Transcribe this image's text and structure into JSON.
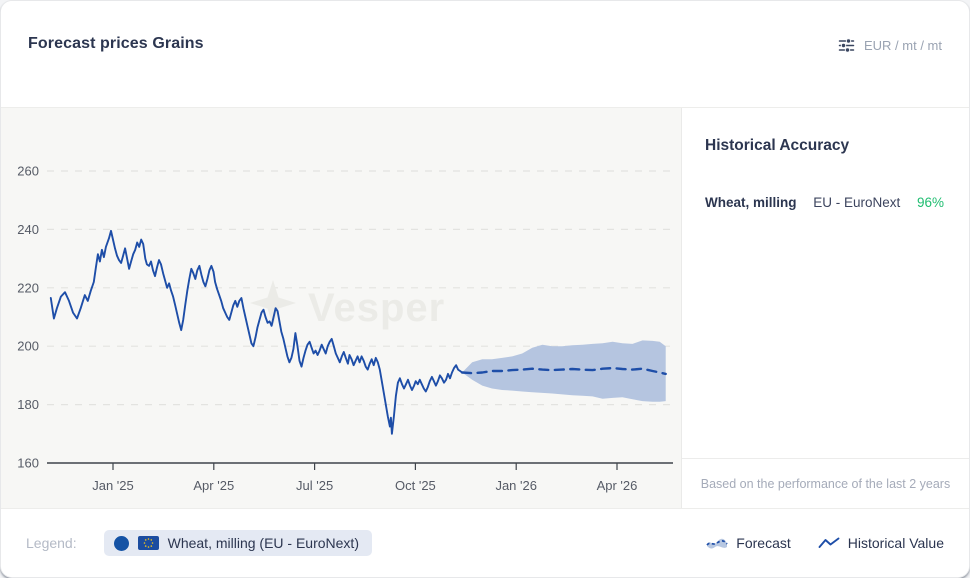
{
  "header": {
    "title": "Forecast prices Grains",
    "unit_label": "EUR / mt / mt"
  },
  "watermark": {
    "text": "Vesper"
  },
  "accuracy_panel": {
    "title": "Historical Accuracy",
    "rows": [
      {
        "product": "Wheat, milling",
        "market": "EU - EuroNext",
        "accuracy": "96%"
      }
    ],
    "footnote": "Based on the performance of the last 2 years",
    "accuracy_color": "#1fbd70"
  },
  "legend": {
    "label": "Legend:",
    "series_pill": {
      "text": "Wheat, milling (EU - EuroNext)",
      "dot_color": "#1553a5"
    },
    "toggles": [
      {
        "label": "Forecast"
      },
      {
        "label": "Historical Value"
      }
    ]
  },
  "colors": {
    "line_blue": "#1e4ea8",
    "forecast_band": "#b5c5e0",
    "chart_bg": "#f7f7f5",
    "grid": "#e3e3e0",
    "axis": "#3f444b",
    "tick_text": "#565b66"
  },
  "chart_data": {
    "type": "line",
    "title": "Forecast prices Grains",
    "ylabel": "EUR / mt",
    "x_unit": "months from Jan 2025",
    "y_ticks": [
      260,
      240,
      220,
      200,
      180,
      160
    ],
    "y_range": [
      160,
      270
    ],
    "x_ticks": [
      {
        "m": 0,
        "label": "Jan '25"
      },
      {
        "m": 3,
        "label": "Apr '25"
      },
      {
        "m": 6,
        "label": "Jul '25"
      },
      {
        "m": 9,
        "label": "Oct '25"
      },
      {
        "m": 12,
        "label": "Jan '26"
      },
      {
        "m": 15,
        "label": "Apr '26"
      }
    ],
    "series": [
      {
        "name": "Wheat, milling (EU - EuroNext) — Historical Value",
        "style": "solid",
        "x": [
          -1.85,
          -1.76,
          -1.67,
          -1.55,
          -1.43,
          -1.31,
          -1.19,
          -1.07,
          -0.96,
          -0.84,
          -0.75,
          -0.66,
          -0.57,
          -0.51,
          -0.45,
          -0.39,
          -0.33,
          -0.27,
          -0.21,
          -0.12,
          -0.06,
          0,
          0.06,
          0.12,
          0.18,
          0.24,
          0.3,
          0.36,
          0.42,
          0.48,
          0.54,
          0.6,
          0.66,
          0.72,
          0.78,
          0.84,
          0.9,
          0.96,
          1.01,
          1.07,
          1.13,
          1.19,
          1.25,
          1.31,
          1.37,
          1.43,
          1.49,
          1.55,
          1.61,
          1.67,
          1.73,
          1.79,
          1.85,
          1.91,
          1.97,
          2.03,
          2.09,
          2.15,
          2.21,
          2.27,
          2.33,
          2.39,
          2.45,
          2.51,
          2.57,
          2.63,
          2.69,
          2.75,
          2.81,
          2.87,
          2.93,
          2.99,
          3.04,
          3.1,
          3.16,
          3.22,
          3.28,
          3.34,
          3.4,
          3.46,
          3.52,
          3.58,
          3.64,
          3.7,
          3.76,
          3.82,
          3.88,
          3.94,
          4,
          4.06,
          4.12,
          4.18,
          4.24,
          4.3,
          4.36,
          4.42,
          4.48,
          4.54,
          4.6,
          4.66,
          4.72,
          4.78,
          4.84,
          4.9,
          4.96,
          5.01,
          5.07,
          5.13,
          5.19,
          5.25,
          5.31,
          5.37,
          5.43,
          5.49,
          5.55,
          5.61,
          5.67,
          5.73,
          5.79,
          5.85,
          5.91,
          5.97,
          6.03,
          6.09,
          6.15,
          6.21,
          6.27,
          6.33,
          6.39,
          6.45,
          6.51,
          6.57,
          6.63,
          6.69,
          6.75,
          6.81,
          6.87,
          6.93,
          6.99,
          7.04,
          7.1,
          7.16,
          7.22,
          7.28,
          7.34,
          7.4,
          7.46,
          7.52,
          7.58,
          7.64,
          7.7,
          7.76,
          7.82,
          7.88,
          7.94,
          8,
          8.06,
          8.12,
          8.18,
          8.24,
          8.27,
          8.3,
          8.36,
          8.42,
          8.48,
          8.54,
          8.6,
          8.66,
          8.72,
          8.78,
          8.84,
          8.9,
          8.96,
          9.01,
          9.07,
          9.13,
          9.19,
          9.25,
          9.31,
          9.37,
          9.43,
          9.49,
          9.55,
          9.61,
          9.67,
          9.73,
          9.79,
          9.85,
          9.91,
          9.97,
          10.03,
          10.09,
          10.15,
          10.21,
          10.27,
          10.33,
          10.39
        ],
        "values": [
          216.5,
          209.5,
          213,
          217,
          218.5,
          215.5,
          211.5,
          209.5,
          213,
          217.5,
          215.5,
          219,
          222,
          227,
          231.5,
          229,
          233,
          230.5,
          234,
          237,
          239.5,
          236.5,
          233.5,
          231,
          229.5,
          228.5,
          231,
          233.5,
          230,
          226.5,
          229,
          231.5,
          233,
          235.5,
          234,
          236.5,
          235,
          230,
          228,
          227.5,
          229,
          226,
          224,
          227,
          229.5,
          228,
          225,
          222.5,
          220,
          221.5,
          219,
          217,
          214,
          211,
          208,
          205.5,
          209,
          214,
          219,
          223,
          226.5,
          225,
          223,
          226,
          227.5,
          224.5,
          222,
          220.5,
          223,
          226,
          227.5,
          225.5,
          222,
          219.5,
          217.5,
          215.5,
          213,
          211.5,
          210,
          209,
          211.5,
          214,
          215.5,
          213.5,
          215.5,
          216.5,
          213,
          210,
          207,
          204,
          201,
          200,
          203,
          206.5,
          209,
          211.5,
          212.5,
          210,
          208,
          208.5,
          207,
          210,
          213,
          212,
          208,
          205,
          202.5,
          199.5,
          196.5,
          194.5,
          196,
          199,
          204.5,
          200,
          195,
          193,
          196,
          198.5,
          200.5,
          201.5,
          199.5,
          197.5,
          198.5,
          197,
          198.5,
          200.5,
          199,
          197.5,
          200,
          201.5,
          202.5,
          200,
          197.5,
          196,
          194.5,
          196.5,
          198,
          196,
          194,
          197,
          195.5,
          193.5,
          195,
          196.5,
          194.5,
          196.5,
          195,
          193,
          192,
          194,
          195.5,
          193.5,
          196,
          194.5,
          192,
          188,
          184,
          180,
          176,
          172.5,
          175.5,
          170,
          176,
          183,
          187.5,
          189,
          187,
          185.5,
          187,
          188.5,
          186.5,
          185,
          186.5,
          188,
          187,
          188.5,
          187,
          185.5,
          184.5,
          186,
          188,
          189.5,
          188,
          186.5,
          188,
          190,
          189,
          187.5,
          188.5,
          190.5,
          189,
          191,
          192.5,
          193.5,
          192,
          191.5,
          191
        ]
      },
      {
        "name": "Wheat, milling (EU - EuroNext) — Forecast (median)",
        "style": "dashed",
        "x": [
          10.39,
          10.69,
          10.99,
          11.28,
          11.58,
          11.88,
          12.18,
          12.48,
          12.78,
          13.07,
          13.37,
          13.67,
          13.97,
          14.27,
          14.57,
          14.87,
          15.16,
          15.46,
          15.76,
          16.06,
          16.27,
          16.45
        ],
        "values": [
          191,
          190.8,
          191,
          191.5,
          191.5,
          191.8,
          192,
          192.3,
          192,
          191.8,
          192,
          192.2,
          192,
          191.8,
          192.3,
          192.5,
          192.2,
          192,
          192.3,
          191.5,
          191,
          190.5
        ]
      }
    ],
    "forecast_band": {
      "x": [
        10.39,
        10.69,
        10.99,
        11.28,
        11.58,
        11.88,
        12.18,
        12.48,
        12.78,
        13.07,
        13.37,
        13.67,
        13.97,
        14.27,
        14.57,
        14.87,
        15.16,
        15.46,
        15.76,
        16.06,
        16.27,
        16.45
      ],
      "upper": [
        191,
        194.5,
        195.5,
        195.5,
        196,
        196.5,
        197.5,
        199.5,
        200.5,
        200,
        200,
        200.3,
        200.5,
        200.8,
        201,
        201.5,
        201,
        200.8,
        202,
        201.8,
        201.5,
        200
      ],
      "lower": [
        191,
        188.5,
        186.5,
        185.5,
        185,
        184.8,
        184.5,
        184.2,
        184,
        183.8,
        183.5,
        183.2,
        183,
        182.8,
        182,
        182.3,
        182.5,
        181.8,
        181.2,
        181,
        181,
        181.2
      ]
    }
  }
}
